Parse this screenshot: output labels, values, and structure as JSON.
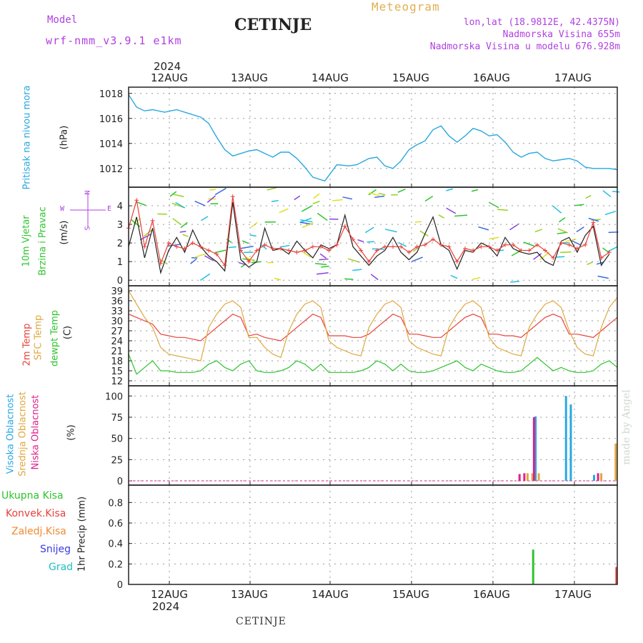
{
  "header": {
    "model_label": "Model",
    "model_name": "wrf-nmm_v3.9.1 e1km",
    "station": "CETINJE",
    "app_title": "Meteogram",
    "coords": "lon,lat (18.9812E, 42.4375N)",
    "elevation": "Nadmorska Visina 655m",
    "model_elevation": "Nadmorska Visina u modelu 676.928m"
  },
  "footer": {
    "station": "CETINJE",
    "credit": "made by Angel"
  },
  "dates": [
    "12AUG",
    "13AUG",
    "14AUG",
    "15AUG",
    "16AUG",
    "17AUG"
  ],
  "year": "2024",
  "colors": {
    "pressure": "#29a8e0",
    "wind_fast": "#222222",
    "wind_gust": "#e8413a",
    "temp_2m": "#e8413a",
    "temp_sfc": "#e0a840",
    "dewpt": "#2ec42e",
    "cloud_high": "#29a8e0",
    "cloud_mid": "#e0a840",
    "cloud_low": "#e0208a",
    "precip_total": "#2ec42e",
    "precip_conv": "#e8413a",
    "precip_frozen": "#f08a30",
    "snow": "#3a3ae0",
    "hail": "#20c0c0",
    "wind_label_purple": "#b040e0"
  },
  "chart_data": [
    {
      "type": "line",
      "name": "pressure",
      "labels": {
        "left": "Pritisak na nivou mora",
        "unit": "(hPa)"
      },
      "yticks": [
        1012,
        1014,
        1016,
        1018
      ],
      "ylim": [
        1010.5,
        1018.5
      ],
      "xlim": [
        0,
        6.1
      ],
      "series": [
        {
          "x": [
            0,
            0.1,
            0.2,
            0.3,
            0.45,
            0.6,
            0.75,
            0.9,
            1.0,
            1.1,
            1.2,
            1.3,
            1.5,
            1.6,
            1.7,
            1.8,
            1.9,
            2.0,
            2.1,
            2.2,
            2.3,
            2.45,
            2.6,
            2.75,
            2.85,
            3.0,
            3.1,
            3.2,
            3.3,
            3.4,
            3.5,
            3.6,
            3.7,
            3.8,
            3.9,
            4.0,
            4.1,
            4.2,
            4.3,
            4.4,
            4.5,
            4.6,
            4.7,
            4.8,
            4.9,
            5.0,
            5.1,
            5.2,
            5.3,
            5.4,
            5.5,
            5.6,
            5.7,
            5.8,
            5.9,
            6.0,
            6.1
          ],
          "y": [
            1017.9,
            1016.9,
            1016.6,
            1016.7,
            1016.5,
            1016.7,
            1016.4,
            1016.1,
            1015.6,
            1014.5,
            1013.5,
            1013.0,
            1013.4,
            1013.5,
            1013.2,
            1012.9,
            1013.3,
            1013.3,
            1012.8,
            1012.1,
            1011.3,
            1011.0,
            1012.3,
            1012.2,
            1012.3,
            1012.8,
            1012.9,
            1012.2,
            1012.0,
            1012.6,
            1013.5,
            1013.9,
            1014.2,
            1015.1,
            1015.4,
            1014.6,
            1014.1,
            1014.6,
            1015.2,
            1015.0,
            1014.6,
            1014.7,
            1014.1,
            1013.3,
            1012.9,
            1013.2,
            1013.3,
            1012.8,
            1012.6,
            1012.7,
            1012.8,
            1012.6,
            1012.1,
            1012.0,
            1012.0,
            1012.0,
            1011.9
          ]
        }
      ]
    },
    {
      "type": "line",
      "name": "wind",
      "labels": {
        "left": "10m Vjetar",
        "left2": "Brzina i Pravac",
        "unit": "(m/s)"
      },
      "yticks": [
        0,
        1,
        2,
        3,
        4
      ],
      "ylim": [
        -0.3,
        5.0
      ],
      "xlim": [
        0,
        6.1
      ],
      "compass": {
        "n": "N",
        "s": "S",
        "e": "E",
        "w": "W"
      },
      "series": [
        {
          "name": "speed",
          "x": [
            0,
            0.1,
            0.2,
            0.3,
            0.4,
            0.5,
            0.6,
            0.7,
            0.8,
            0.9,
            1.0,
            1.1,
            1.2,
            1.3,
            1.4,
            1.5,
            1.6,
            1.7,
            1.8,
            1.9,
            2.0,
            2.1,
            2.2,
            2.3,
            2.4,
            2.5,
            2.6,
            2.7,
            2.8,
            2.9,
            3.0,
            3.1,
            3.2,
            3.3,
            3.4,
            3.5,
            3.6,
            3.7,
            3.8,
            3.9,
            4.0,
            4.1,
            4.2,
            4.3,
            4.4,
            4.5,
            4.6,
            4.7,
            4.8,
            4.9,
            5.0,
            5.1,
            5.2,
            5.3,
            5.4,
            5.5,
            5.6,
            5.7,
            5.8,
            5.9,
            6.0
          ],
          "y": [
            1.8,
            3.4,
            1.2,
            2.8,
            0.4,
            1.6,
            2.3,
            1.5,
            2.7,
            1.8,
            1.3,
            1.0,
            0.5,
            4.2,
            1.1,
            0.7,
            1.0,
            2.8,
            1.6,
            1.7,
            1.4,
            2.1,
            1.6,
            1.2,
            1.9,
            1.7,
            1.9,
            3.5,
            1.8,
            1.3,
            0.8,
            1.3,
            1.6,
            2.3,
            1.5,
            1.1,
            1.5,
            2.5,
            3.4,
            1.9,
            1.6,
            0.6,
            1.6,
            1.5,
            2.0,
            1.8,
            1.3,
            2.3,
            1.7,
            1.5,
            1.4,
            1.5,
            1.0,
            0.8,
            2.1,
            2.3,
            1.5,
            2.4,
            2.9,
            0.8,
            1.4
          ]
        },
        {
          "name": "gust",
          "x": [
            0,
            0.1,
            0.2,
            0.3,
            0.4,
            0.5,
            0.6,
            0.7,
            0.8,
            0.9,
            1.0,
            1.1,
            1.2,
            1.3,
            1.4,
            1.5,
            1.6,
            1.7,
            1.8,
            1.9,
            2.0,
            2.1,
            2.2,
            2.3,
            2.4,
            2.5,
            2.6,
            2.7,
            2.8,
            2.9,
            3.0,
            3.1,
            3.2,
            3.3,
            3.4,
            3.5,
            3.6,
            3.7,
            3.8,
            3.9,
            4.0,
            4.1,
            4.2,
            4.3,
            4.4,
            4.5,
            4.6,
            4.7,
            4.8,
            4.9,
            5.0,
            5.1,
            5.2,
            5.3,
            5.4,
            5.5,
            5.6,
            5.7,
            5.8,
            5.9,
            6.0
          ],
          "y": [
            2.8,
            4.3,
            1.8,
            3.2,
            0.9,
            2.0,
            1.8,
            1.7,
            2.0,
            1.8,
            1.6,
            1.4,
            0.8,
            4.5,
            1.6,
            1.0,
            1.6,
            1.9,
            1.7,
            1.7,
            1.6,
            1.5,
            1.6,
            1.8,
            1.8,
            1.6,
            1.9,
            2.9,
            2.2,
            1.6,
            1.0,
            1.6,
            1.8,
            1.8,
            1.8,
            1.5,
            1.8,
            1.9,
            2.2,
            1.9,
            1.8,
            1.0,
            1.7,
            1.6,
            1.8,
            1.8,
            1.6,
            1.9,
            1.9,
            1.6,
            1.6,
            1.9,
            1.6,
            1.2,
            2.0,
            1.9,
            1.7,
            1.9,
            3.1,
            1.2,
            1.5
          ]
        }
      ]
    },
    {
      "type": "line",
      "name": "temperature",
      "labels": {
        "l1": "2m Temp",
        "l2": "SFC Temp",
        "l3": "dewpt Temp",
        "unit": "(C)"
      },
      "yticks": [
        12,
        15,
        18,
        21,
        24,
        27,
        30,
        33,
        36,
        39
      ],
      "ylim": [
        10.5,
        40.5
      ],
      "xlim": [
        0,
        6.1
      ],
      "series": [
        {
          "name": "2m Temp",
          "x": [
            0,
            0.1,
            0.2,
            0.3,
            0.4,
            0.5,
            0.6,
            0.7,
            0.8,
            0.9,
            1.0,
            1.1,
            1.2,
            1.3,
            1.4,
            1.5,
            1.6,
            1.7,
            1.8,
            1.9,
            2.0,
            2.1,
            2.2,
            2.3,
            2.4,
            2.5,
            2.6,
            2.7,
            2.8,
            2.9,
            3.0,
            3.1,
            3.2,
            3.3,
            3.4,
            3.5,
            3.6,
            3.7,
            3.8,
            3.9,
            4.0,
            4.1,
            4.2,
            4.3,
            4.4,
            4.5,
            4.6,
            4.7,
            4.8,
            4.9,
            5.0,
            5.1,
            5.2,
            5.3,
            5.4,
            5.5,
            5.6,
            5.7,
            5.8,
            5.9,
            6.0,
            6.1
          ],
          "y": [
            32,
            31,
            30,
            29,
            26,
            25.5,
            25,
            25,
            24.5,
            24,
            26,
            28,
            30,
            32,
            31,
            25.5,
            26,
            25,
            24.5,
            24,
            26,
            28,
            30,
            32,
            31,
            25.5,
            25.5,
            25.5,
            25,
            25,
            26,
            28,
            30,
            32,
            31,
            26,
            26,
            25.5,
            25,
            25,
            27,
            29,
            31,
            32,
            31,
            26,
            26,
            25.5,
            25.5,
            25,
            27,
            29,
            31,
            32,
            31,
            26,
            26,
            25.5,
            25,
            27,
            29,
            31
          ]
        },
        {
          "name": "SFC Temp",
          "x": [
            0,
            0.1,
            0.2,
            0.3,
            0.4,
            0.5,
            0.6,
            0.7,
            0.8,
            0.9,
            1.0,
            1.1,
            1.2,
            1.3,
            1.4,
            1.5,
            1.6,
            1.7,
            1.8,
            1.9,
            2.0,
            2.1,
            2.2,
            2.3,
            2.4,
            2.5,
            2.6,
            2.7,
            2.8,
            2.9,
            3.0,
            3.1,
            3.2,
            3.3,
            3.4,
            3.5,
            3.6,
            3.7,
            3.8,
            3.9,
            4.0,
            4.1,
            4.2,
            4.3,
            4.4,
            4.5,
            4.6,
            4.7,
            4.8,
            4.9,
            5.0,
            5.1,
            5.2,
            5.3,
            5.4,
            5.5,
            5.6,
            5.7,
            5.8,
            5.9,
            6.0,
            6.1
          ],
          "y": [
            39,
            35,
            31,
            28,
            22,
            20,
            19.5,
            19,
            18.5,
            18,
            28,
            32,
            35,
            36,
            34,
            25,
            25,
            22,
            20,
            19,
            27,
            32,
            35,
            36,
            34,
            24,
            22,
            21,
            20,
            19.5,
            28,
            32,
            35,
            36,
            34,
            24,
            22,
            21,
            20,
            19.5,
            28,
            32,
            35,
            36,
            34,
            25,
            22,
            21,
            20,
            19.5,
            28,
            32,
            35,
            36,
            34,
            27,
            22,
            20,
            19.5,
            28,
            34,
            37
          ]
        },
        {
          "name": "dewpt Temp",
          "x": [
            0,
            0.1,
            0.2,
            0.3,
            0.4,
            0.5,
            0.6,
            0.7,
            0.8,
            0.9,
            1.0,
            1.1,
            1.2,
            1.3,
            1.4,
            1.5,
            1.6,
            1.7,
            1.8,
            1.9,
            2.0,
            2.1,
            2.2,
            2.3,
            2.4,
            2.5,
            2.6,
            2.7,
            2.8,
            2.9,
            3.0,
            3.1,
            3.2,
            3.3,
            3.4,
            3.5,
            3.6,
            3.7,
            3.8,
            3.9,
            4.0,
            4.1,
            4.2,
            4.3,
            4.4,
            4.5,
            4.6,
            4.7,
            4.8,
            4.9,
            5.0,
            5.1,
            5.2,
            5.3,
            5.4,
            5.5,
            5.6,
            5.7,
            5.8,
            5.9,
            6.0,
            6.1
          ],
          "y": [
            20,
            14,
            16,
            18,
            15,
            15,
            14.5,
            14.5,
            14.5,
            15,
            17,
            18,
            16,
            15,
            17,
            18,
            15,
            14.5,
            14.5,
            15,
            16,
            18,
            17,
            15,
            17,
            14.5,
            14.5,
            14.5,
            14.5,
            15,
            16,
            18,
            17,
            15,
            17,
            15,
            14.5,
            14.5,
            15,
            16,
            17,
            18,
            16,
            15,
            17,
            16,
            15,
            14.5,
            14.5,
            15,
            17,
            19,
            17,
            15,
            16,
            15,
            14.5,
            14.5,
            15,
            17,
            18,
            16
          ]
        }
      ]
    },
    {
      "type": "bar",
      "name": "clouds",
      "labels": {
        "l1": "Visoka Oblacnost",
        "l2": "Srednja Oblacnost",
        "l3": "Niska Oblacnost",
        "unit": "(%)"
      },
      "yticks": [
        0,
        25,
        50,
        75,
        100
      ],
      "ylim": [
        -5,
        112
      ],
      "xlim": [
        0,
        6.1
      ],
      "series": [
        {
          "name": "Visoka Oblacnost",
          "x": [
            5.08,
            5.46,
            5.52,
            5.81
          ],
          "values": [
            76,
            100,
            90,
            7
          ]
        },
        {
          "name": "Srednja Oblacnost",
          "x": [
            4.98,
            5.04,
            5.12,
            5.9,
            6.08
          ],
          "values": [
            9,
            9,
            9,
            9,
            44
          ]
        },
        {
          "name": "Niska Oblacnost",
          "x": [
            4.88,
            4.94,
            5.06,
            5.86
          ],
          "values": [
            8,
            9,
            75,
            9
          ]
        }
      ]
    },
    {
      "type": "bar",
      "name": "precip",
      "labels": {
        "l1": "Ukupna Kisa",
        "l2": "Konvek.Kisa",
        "l3": "Zaledj.Kisa",
        "l4": "Snijeg",
        "l5": "Grad",
        "unit": "1hr Precip (mm)"
      },
      "yticks": [
        0,
        0.2,
        0.4,
        0.6,
        0.8
      ],
      "ylim": [
        0,
        0.97
      ],
      "xlim": [
        0,
        6.1
      ],
      "series": [
        {
          "name": "Ukupna Kisa",
          "x": [
            5.05
          ],
          "values": [
            0.34
          ]
        },
        {
          "name": "Konvek.Kisa",
          "x": [
            6.09
          ],
          "values": [
            0.17
          ]
        }
      ]
    }
  ]
}
